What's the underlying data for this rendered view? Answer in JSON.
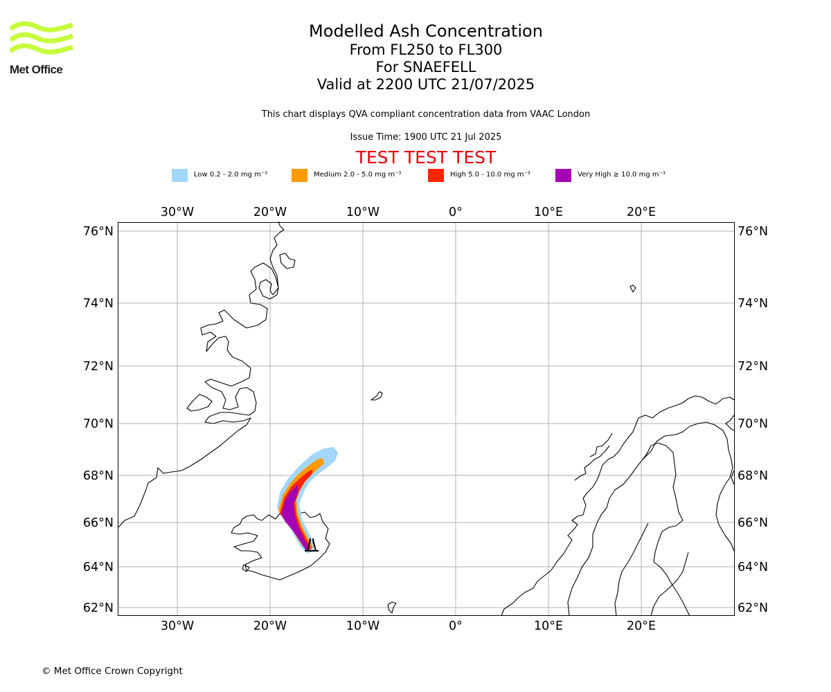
{
  "brand": {
    "logo_text": "Met Office"
  },
  "title": {
    "line1": "Modelled Ash Concentration",
    "line2": "From FL250 to FL300",
    "line3": "For SNAEFELL",
    "line4": "Valid at 2200 UTC 21/07/2025"
  },
  "subtitle": "This chart displays QVA compliant concentration data from VAAC London",
  "issue_time": "Issue Time: 1900 UTC 21 Jul 2025",
  "test_banner": "TEST TEST TEST",
  "legend": [
    {
      "label": "Low 0.2 - 2.0 mg m⁻³",
      "color": "#a2d6fc"
    },
    {
      "label": "Medium 2.0 - 5.0 mg m⁻³",
      "color": "#fe9a02"
    },
    {
      "label": "High 5.0 - 10.0 mg m⁻³",
      "color": "#fe2501"
    },
    {
      "label": "Very High ≥ 10.0 mg m⁻³",
      "color": "#a401b4"
    }
  ],
  "map": {
    "lon_labels": [
      "30°W",
      "20°W",
      "10°W",
      "0°",
      "10°E",
      "20°E"
    ],
    "lat_labels": [
      "76°N",
      "74°N",
      "72°N",
      "70°N",
      "68°N",
      "66°N",
      "64°N",
      "62°N"
    ],
    "volcano_marker": "volcano-icon",
    "colors": {
      "gridline": "#b0b0b0",
      "coastline": "#000000",
      "logo_green": "#c7fb3d"
    }
  },
  "copyright": "© Met Office Crown Copyright"
}
